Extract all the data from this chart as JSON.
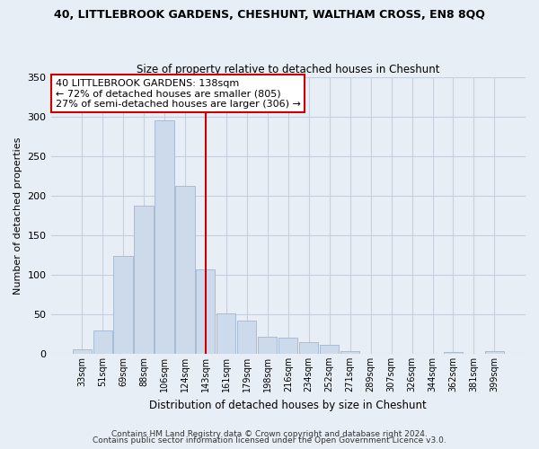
{
  "title": "40, LITTLEBROOK GARDENS, CHESHUNT, WALTHAM CROSS, EN8 8QQ",
  "subtitle": "Size of property relative to detached houses in Cheshunt",
  "xlabel": "Distribution of detached houses by size in Cheshunt",
  "ylabel": "Number of detached properties",
  "bar_labels": [
    "33sqm",
    "51sqm",
    "69sqm",
    "88sqm",
    "106sqm",
    "124sqm",
    "143sqm",
    "161sqm",
    "179sqm",
    "198sqm",
    "216sqm",
    "234sqm",
    "252sqm",
    "271sqm",
    "289sqm",
    "307sqm",
    "326sqm",
    "344sqm",
    "362sqm",
    "381sqm",
    "399sqm"
  ],
  "bar_values": [
    5,
    29,
    124,
    188,
    295,
    213,
    107,
    51,
    42,
    22,
    20,
    15,
    11,
    3,
    0,
    0,
    0,
    0,
    2,
    0,
    3
  ],
  "bar_color": "#cddaeb",
  "bar_edge_color": "#a8bcd4",
  "ylim": [
    0,
    350
  ],
  "yticks": [
    0,
    50,
    100,
    150,
    200,
    250,
    300,
    350
  ],
  "vline_x_index": 6.0,
  "vline_color": "#cc0000",
  "annotation_lines": [
    "40 LITTLEBROOK GARDENS: 138sqm",
    "← 72% of detached houses are smaller (805)",
    "27% of semi-detached houses are larger (306) →"
  ],
  "footer_line1": "Contains HM Land Registry data © Crown copyright and database right 2024.",
  "footer_line2": "Contains public sector information licensed under the Open Government Licence v3.0.",
  "background_color": "#e8eef5",
  "plot_bg_color": "#e8eef5",
  "grid_color": "#c5d0dc"
}
